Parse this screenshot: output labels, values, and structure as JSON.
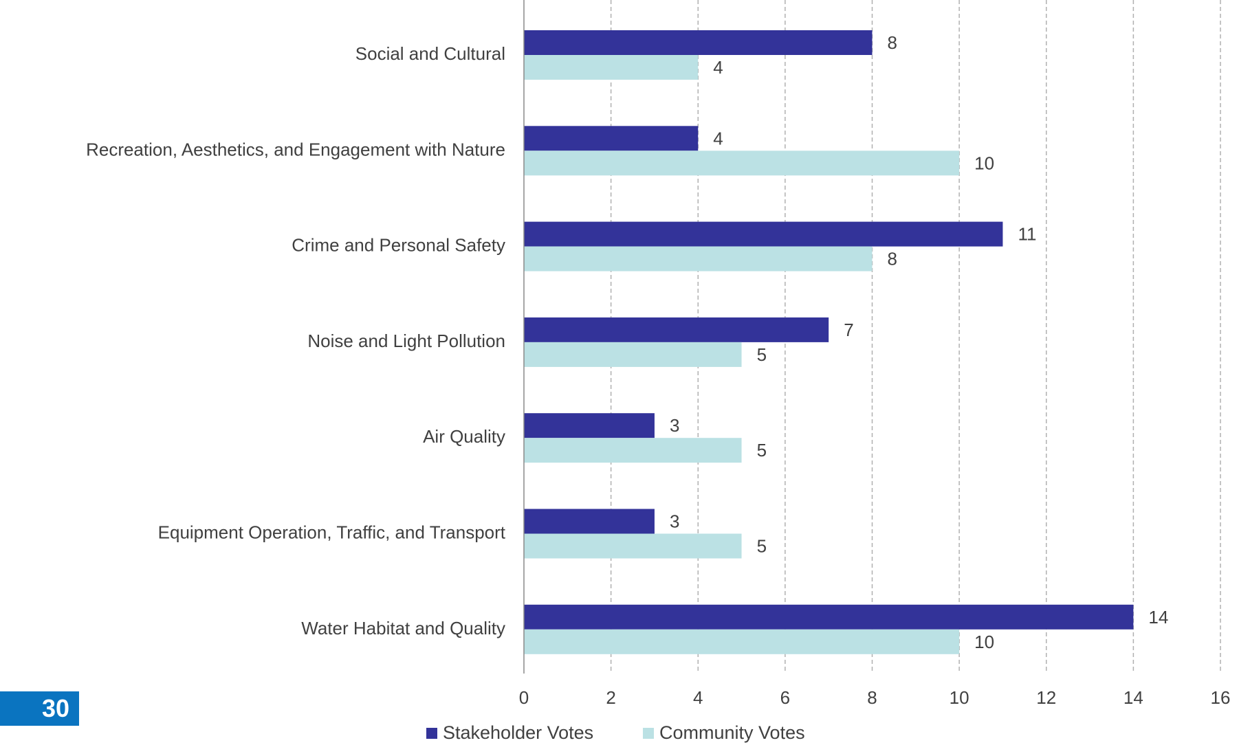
{
  "page_number": "30",
  "colors": {
    "stakeholder": "#333399",
    "community": "#bbe1e4",
    "grid": "#b0b0b0",
    "axis": "#888888",
    "text": "#404040",
    "badge": "#0a74c0"
  },
  "chart_data": {
    "type": "bar",
    "orientation": "horizontal",
    "categories": [
      "Social and Cultural",
      "Recreation, Aesthetics, and Engagement with Nature",
      "Crime and Personal Safety",
      "Noise and Light Pollution",
      "Air Quality",
      "Equipment Operation, Traffic, and Transport",
      "Water Habitat and Quality"
    ],
    "series": [
      {
        "name": "Stakeholder Votes",
        "values": [
          8,
          4,
          11,
          7,
          3,
          3,
          14
        ]
      },
      {
        "name": "Community Votes",
        "values": [
          4,
          10,
          8,
          5,
          5,
          5,
          10
        ]
      }
    ],
    "xlim": [
      0,
      16
    ],
    "xticks": [
      0,
      2,
      4,
      6,
      8,
      10,
      12,
      14,
      16
    ],
    "grid": "vertical dashed",
    "legend_position": "bottom-center",
    "data_labels": true
  }
}
